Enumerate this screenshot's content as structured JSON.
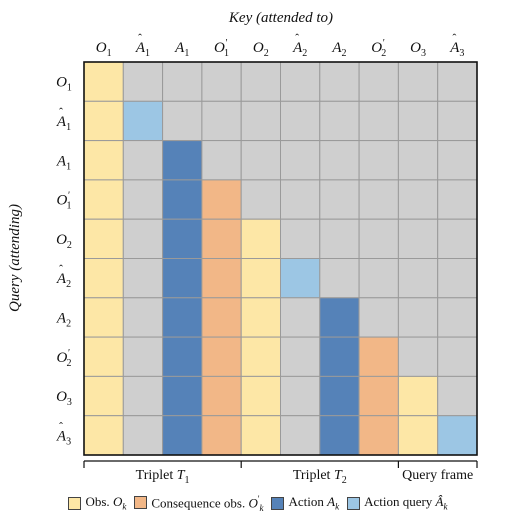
{
  "axes": {
    "x_title": "Key (attended to)",
    "y_title": "Query (attending)"
  },
  "tokens": [
    {
      "base": "O",
      "hat": false,
      "prime": false,
      "sub": "1"
    },
    {
      "base": "A",
      "hat": true,
      "prime": false,
      "sub": "1"
    },
    {
      "base": "A",
      "hat": false,
      "prime": false,
      "sub": "1"
    },
    {
      "base": "O",
      "hat": false,
      "prime": true,
      "sub": "1"
    },
    {
      "base": "O",
      "hat": false,
      "prime": false,
      "sub": "2"
    },
    {
      "base": "A",
      "hat": true,
      "prime": false,
      "sub": "2"
    },
    {
      "base": "A",
      "hat": false,
      "prime": false,
      "sub": "2"
    },
    {
      "base": "O",
      "hat": false,
      "prime": true,
      "sub": "2"
    },
    {
      "base": "O",
      "hat": false,
      "prime": false,
      "sub": "3"
    },
    {
      "base": "A",
      "hat": true,
      "prime": false,
      "sub": "3"
    }
  ],
  "matrix": [
    [
      "obs",
      "masked",
      "masked",
      "masked",
      "masked",
      "masked",
      "masked",
      "masked",
      "masked",
      "masked"
    ],
    [
      "obs",
      "action_query",
      "masked",
      "masked",
      "masked",
      "masked",
      "masked",
      "masked",
      "masked",
      "masked"
    ],
    [
      "obs",
      "masked",
      "action",
      "masked",
      "masked",
      "masked",
      "masked",
      "masked",
      "masked",
      "masked"
    ],
    [
      "obs",
      "masked",
      "action",
      "consequence",
      "masked",
      "masked",
      "masked",
      "masked",
      "masked",
      "masked"
    ],
    [
      "obs",
      "masked",
      "action",
      "consequence",
      "obs",
      "masked",
      "masked",
      "masked",
      "masked",
      "masked"
    ],
    [
      "obs",
      "masked",
      "action",
      "consequence",
      "obs",
      "action_query",
      "masked",
      "masked",
      "masked",
      "masked"
    ],
    [
      "obs",
      "masked",
      "action",
      "consequence",
      "obs",
      "masked",
      "action",
      "masked",
      "masked",
      "masked"
    ],
    [
      "obs",
      "masked",
      "action",
      "consequence",
      "obs",
      "masked",
      "action",
      "consequence",
      "masked",
      "masked"
    ],
    [
      "obs",
      "masked",
      "action",
      "consequence",
      "obs",
      "masked",
      "action",
      "consequence",
      "obs",
      "masked"
    ],
    [
      "obs",
      "masked",
      "action",
      "consequence",
      "obs",
      "masked",
      "action",
      "consequence",
      "obs",
      "action_query"
    ]
  ],
  "colors": {
    "obs": "#fde7a6",
    "consequence": "#f2b787",
    "action": "#5582b8",
    "action_query": "#9cc6e4",
    "masked": "#cfcfcf",
    "grid": "#9a9a9a",
    "border": "#111111"
  },
  "groups": [
    {
      "label": "Triplet",
      "sub": "1"
    },
    {
      "label": "Triplet",
      "sub": "2"
    },
    {
      "label": "Query frame",
      "sub": ""
    }
  ],
  "legend": [
    {
      "key": "obs",
      "label": "Obs.",
      "sym": "O",
      "hat": false,
      "prime": false,
      "sub": "k"
    },
    {
      "key": "consequence",
      "label": "Consequence obs.",
      "sym": "O",
      "hat": false,
      "prime": true,
      "sub": "k"
    },
    {
      "key": "action",
      "label": "Action",
      "sym": "A",
      "hat": false,
      "prime": false,
      "sub": "k"
    },
    {
      "key": "action_query",
      "label": "Action query",
      "sym": "A",
      "hat": true,
      "prime": false,
      "sub": "k"
    }
  ]
}
